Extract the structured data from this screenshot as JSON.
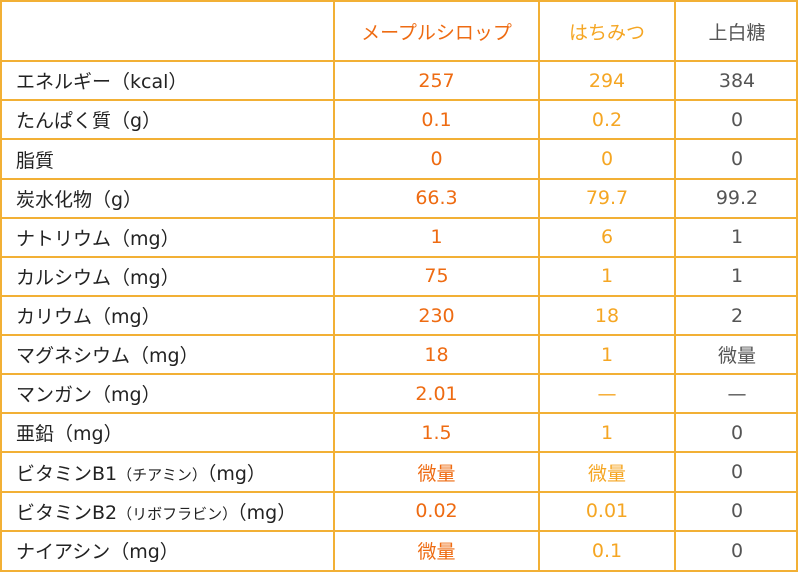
{
  "header": {
    "corner": "",
    "columns": [
      "メープルシロップ",
      "はちみつ",
      "上白糖"
    ]
  },
  "rows": [
    {
      "label": "エネルギー（kcal）",
      "maple": "257",
      "honey": "294",
      "sugar": "384"
    },
    {
      "label": "たんぱく質（g）",
      "maple": "0.1",
      "honey": "0.2",
      "sugar": "0"
    },
    {
      "label": "脂質",
      "maple": "0",
      "honey": "0",
      "sugar": "0"
    },
    {
      "label": "炭水化物（g）",
      "maple": "66.3",
      "honey": "79.7",
      "sugar": "99.2"
    },
    {
      "label": "ナトリウム（mg）",
      "maple": "1",
      "honey": "6",
      "sugar": "1"
    },
    {
      "label": "カルシウム（mg）",
      "maple": "75",
      "honey": "1",
      "sugar": "1"
    },
    {
      "label": "カリウム（mg）",
      "maple": "230",
      "honey": "18",
      "sugar": "2"
    },
    {
      "label": "マグネシウム（mg）",
      "maple": "18",
      "honey": "1",
      "sugar": "微量"
    },
    {
      "label": "マンガン（mg）",
      "maple": "2.01",
      "honey": "—",
      "sugar": "—"
    },
    {
      "label": "亜鉛（mg）",
      "maple": "1.5",
      "honey": "1",
      "sugar": "0"
    },
    {
      "label": "ビタミンB1",
      "label_small": "（チアミン）",
      "label_unit": "（mg）",
      "maple": "微量",
      "honey": "微量",
      "sugar": "0"
    },
    {
      "label": "ビタミンB2",
      "label_small": "（リボフラビン）",
      "label_unit": "（mg）",
      "maple": "0.02",
      "honey": "0.01",
      "sugar": "0"
    },
    {
      "label": "ナイアシン（mg）",
      "maple": "微量",
      "honey": "0.1",
      "sugar": "0"
    }
  ],
  "colors": {
    "border": "#f2b035",
    "maple": "#ee6b12",
    "honey": "#f5a623",
    "sugar": "#555555",
    "label": "#222222"
  }
}
